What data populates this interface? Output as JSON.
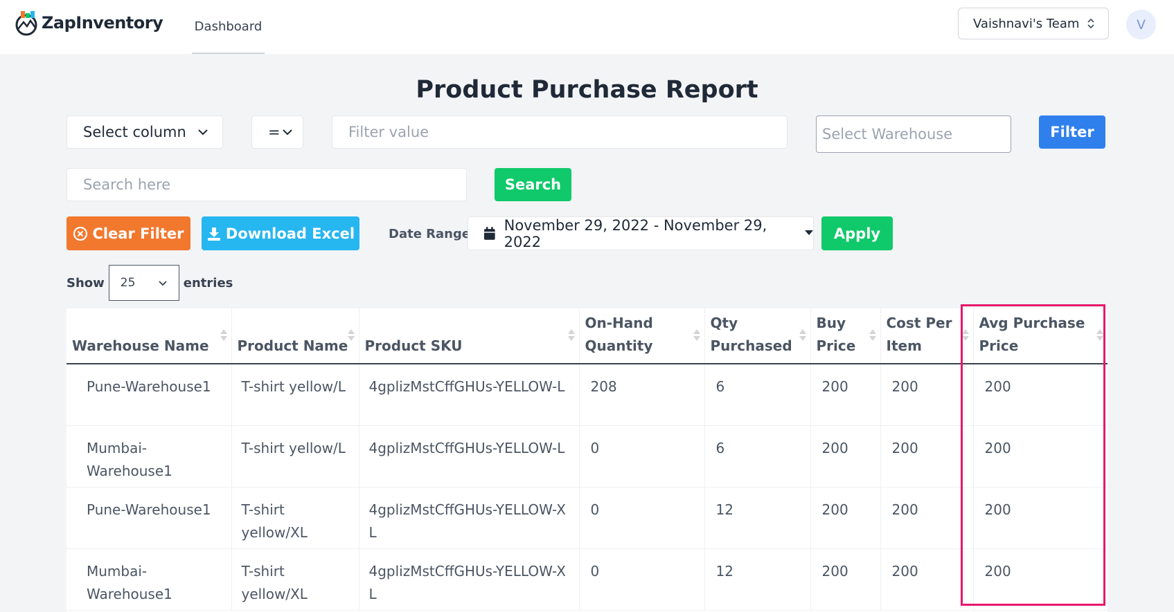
{
  "app": {
    "name": "ZapInventory"
  },
  "nav": {
    "dashboard": "Dashboard"
  },
  "team": {
    "label": "Vaishnavi's Team",
    "avatar_initial": "V"
  },
  "page": {
    "title": "Product Purchase Report"
  },
  "filters": {
    "column_select": "Select column",
    "operator": "=",
    "value_placeholder": "Filter value",
    "warehouse_placeholder": "Select Warehouse",
    "filter_button": "Filter",
    "search_placeholder": "Search here",
    "search_button": "Search",
    "clear_button": "Clear Filter",
    "excel_button": "Download Excel",
    "date_label": "Date Range:",
    "date_value": "November 29, 2022 - November 29, 2022",
    "apply_button": "Apply"
  },
  "entries": {
    "show": "Show",
    "value": "25",
    "suffix": "entries"
  },
  "table": {
    "headers": [
      "Warehouse Name",
      "Product Name",
      "Product SKU",
      "On-Hand Quantity",
      "Qty Purchased",
      "Buy Price",
      "Cost Per Item",
      "Avg Purchase Price"
    ],
    "rows": [
      [
        "Pune-Warehouse1",
        "T-shirt yellow/L",
        "4gplizMstCffGHUs-YELLOW-L",
        "208",
        "6",
        "200",
        "200",
        "200"
      ],
      [
        "Mumbai-Warehouse1",
        "T-shirt yellow/L",
        "4gplizMstCffGHUs-YELLOW-L",
        "0",
        "6",
        "200",
        "200",
        "200"
      ],
      [
        "Pune-Warehouse1",
        "T-shirt yellow/XL",
        "4gplizMstCffGHUs-YELLOW-XL",
        "0",
        "12",
        "200",
        "200",
        "200"
      ],
      [
        "Mumbai-Warehouse1",
        "T-shirt yellow/XL",
        "4gplizMstCffGHUs-YELLOW-XL",
        "0",
        "12",
        "200",
        "200",
        "200"
      ]
    ]
  },
  "colors": {
    "filter": "#2f80ed",
    "search": "#10c96a",
    "clear": "#f2782e",
    "excel": "#26b6f0",
    "apply": "#10c96a",
    "highlight": "#e8186a"
  }
}
